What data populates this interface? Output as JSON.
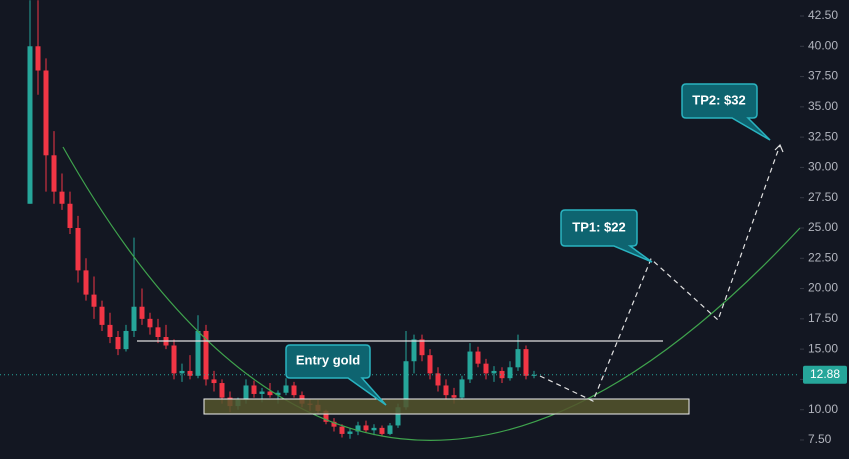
{
  "chart_data": {
    "type": "candlestick",
    "up_color": "#26a69a",
    "down_color": "#f23645",
    "open": [
      27,
      40,
      38,
      31,
      28,
      27,
      25,
      21.5,
      19.5,
      18.5,
      17,
      16,
      15,
      16.5,
      18.5,
      17.5,
      16.8,
      16,
      15.3,
      13,
      13.2,
      12.8,
      16.5,
      12.5,
      12.2,
      11,
      10.3,
      10.8,
      12,
      11.3,
      11.5,
      11.2,
      11.4,
      12,
      11.2,
      10.5,
      10.4,
      9.9,
      9,
      8.6,
      8,
      8.2,
      8.7,
      8.3,
      8.5,
      8,
      8.7,
      10.2,
      14,
      15.8,
      14.5,
      13,
      12,
      11.2,
      11,
      12.5,
      14.8,
      13.8,
      13,
      13.2,
      12.6,
      13.5,
      15,
      12.8
    ],
    "high": [
      43.8,
      43.8,
      39,
      33,
      29.5,
      28,
      26,
      22.5,
      21,
      19,
      18,
      16.5,
      17,
      24.2,
      20,
      18,
      17.5,
      17,
      15.8,
      13.8,
      14.5,
      17.8,
      17,
      13.2,
      12.5,
      11.5,
      11,
      12.5,
      12.4,
      11.8,
      12.2,
      11.6,
      12.6,
      12.3,
      11.5,
      10.9,
      10.8,
      10,
      9.3,
      8.8,
      8.5,
      9,
      9.1,
      8.8,
      8.7,
      8.9,
      10.5,
      16.5,
      16.2,
      16.2,
      15,
      13.5,
      12.5,
      11.8,
      12.8,
      15.5,
      15.2,
      14.2,
      13.6,
      13.5,
      14,
      16.2,
      15.3,
      13.2
    ],
    "low": [
      27,
      36,
      28,
      27,
      26.5,
      24.5,
      20.5,
      19,
      17.5,
      16.5,
      15.5,
      14.5,
      14.8,
      16,
      17,
      16.2,
      15.5,
      15,
      12.5,
      12.3,
      12.5,
      12.6,
      12,
      11.5,
      10.5,
      9.8,
      10,
      10.5,
      11,
      10.6,
      11,
      10.5,
      11.2,
      11,
      10.2,
      9.9,
      9.6,
      8.8,
      8.2,
      7.7,
      7.6,
      7.9,
      8.1,
      7.9,
      7.8,
      7.9,
      8.5,
      10,
      13,
      14,
      12.5,
      11.5,
      10.8,
      10.5,
      10.8,
      12.2,
      13.5,
      12.5,
      12.3,
      12.2,
      12.4,
      13.2,
      12.5,
      12.6
    ],
    "close": [
      40,
      38,
      31,
      28,
      27,
      25,
      21.5,
      19.5,
      18.5,
      17,
      16,
      15,
      16.5,
      18.5,
      17.5,
      16.8,
      16,
      15.3,
      13,
      13.2,
      12.8,
      16.5,
      12.5,
      12.2,
      11,
      10.3,
      10.8,
      12,
      11.3,
      11.5,
      11.2,
      11.4,
      12,
      11.2,
      10.5,
      10.4,
      9.9,
      9,
      8.6,
      8,
      8.2,
      8.7,
      8.3,
      8.5,
      8,
      8.7,
      10.2,
      14,
      15.8,
      14.5,
      13,
      12,
      11.2,
      11,
      12.5,
      14.8,
      13.8,
      13,
      13.2,
      12.6,
      13.5,
      15,
      12.8,
      12.88
    ],
    "ylim": [
      5.93,
      43.82
    ],
    "yticks": [
      {
        "value": 42.5,
        "label": "42.50"
      },
      {
        "value": 40,
        "label": "40.00"
      },
      {
        "value": 37.5,
        "label": "37.50"
      },
      {
        "value": 35,
        "label": "35.00"
      },
      {
        "value": 32.5,
        "label": "32.50"
      },
      {
        "value": 30,
        "label": "30.00"
      },
      {
        "value": 27.5,
        "label": "27.50"
      },
      {
        "value": 25,
        "label": "25.00"
      },
      {
        "value": 22.5,
        "label": "22.50"
      },
      {
        "value": 20,
        "label": "20.00"
      },
      {
        "value": 17.5,
        "label": "17.50"
      },
      {
        "value": 15,
        "label": "15.00"
      },
      {
        "value": 12.5,
        "label": "12.50"
      },
      {
        "value": 10,
        "label": "10.00"
      },
      {
        "value": 7.5,
        "label": "7.50"
      }
    ],
    "grid": false,
    "last_price": 12.88,
    "last_price_color": "#26a69a",
    "annotations": [
      "Entry gold",
      "TP1: $22",
      "TP2: $32"
    ]
  }
}
